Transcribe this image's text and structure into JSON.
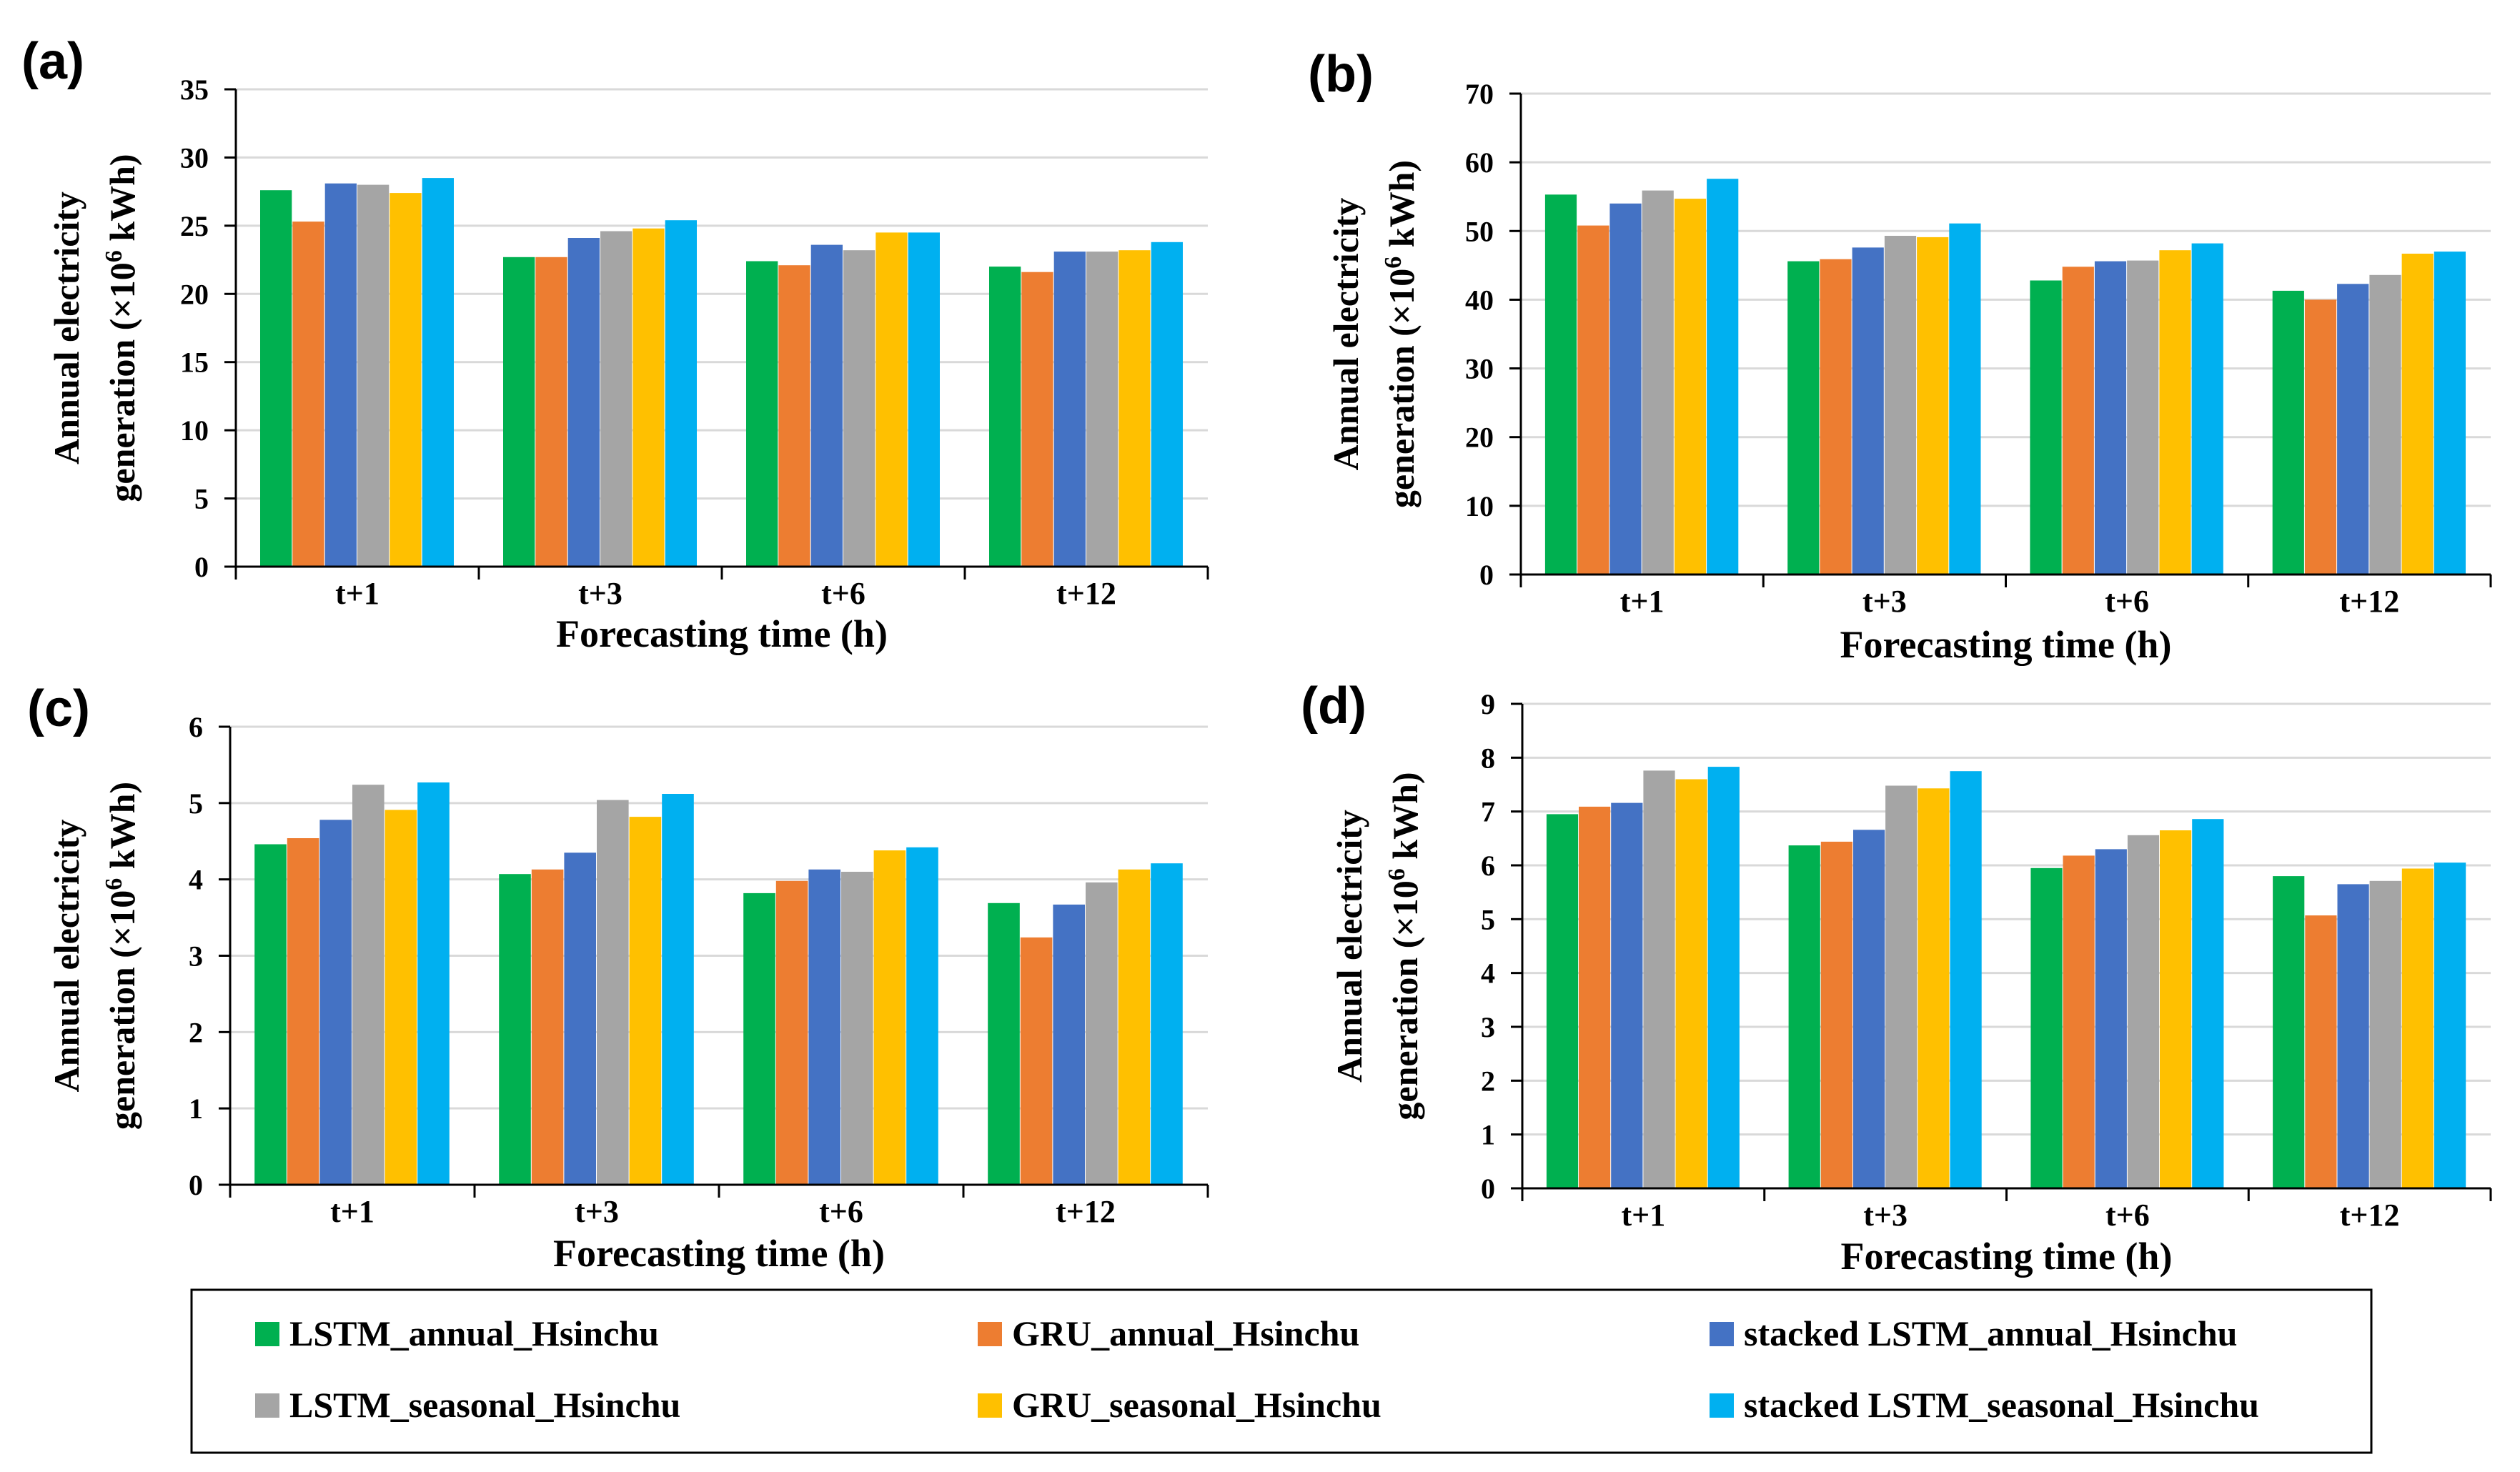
{
  "figure": {
    "legend": [
      {
        "name": "LSTM_annual_Hsinchu",
        "color": "#00b050"
      },
      {
        "name": "GRU_annual_Hsinchu",
        "color": "#ed7d31"
      },
      {
        "name": "stacked LSTM_annual_Hsinchu",
        "color": "#4472c4"
      },
      {
        "name": "LSTM_seasonal_Hsinchu",
        "color": "#a5a5a5"
      },
      {
        "name": "GRU_seasonal_Hsinchu",
        "color": "#ffc000"
      },
      {
        "name": "stacked LSTM_seasonal_Hsinchu",
        "color": "#00b0f0"
      }
    ]
  },
  "chart_data": [
    {
      "panel": "(a)",
      "type": "bar",
      "xlabel": "Forecasting time (h)",
      "ylabel_line1": "Annual electricity",
      "ylabel_line2": "generation (×10",
      "ylabel_sup": "6",
      "ylabel_unit": " kWh)",
      "categories": [
        "t+1",
        "t+3",
        "t+6",
        "t+12"
      ],
      "ylim": [
        0,
        35
      ],
      "yticks": [
        0,
        5,
        10,
        15,
        20,
        25,
        30,
        35
      ],
      "series": [
        {
          "name": "LSTM_annual_Hsinchu",
          "values": [
            27.6,
            22.7,
            22.4,
            22.0
          ]
        },
        {
          "name": "GRU_annual_Hsinchu",
          "values": [
            25.3,
            22.7,
            22.1,
            21.6
          ]
        },
        {
          "name": "stacked LSTM_annual_Hsinchu",
          "values": [
            28.1,
            24.1,
            23.6,
            23.1
          ]
        },
        {
          "name": "LSTM_seasonal_Hsinchu",
          "values": [
            28.0,
            24.6,
            23.2,
            23.1
          ]
        },
        {
          "name": "GRU_seasonal_Hsinchu",
          "values": [
            27.4,
            24.8,
            24.5,
            23.2
          ]
        },
        {
          "name": "stacked LSTM_seasonal_Hsinchu",
          "values": [
            28.5,
            25.4,
            24.5,
            23.8
          ]
        }
      ]
    },
    {
      "panel": "(b)",
      "type": "bar",
      "xlabel": "Forecasting time (h)",
      "ylabel_line1": "Annual electricity",
      "ylabel_line2": "generation (×10",
      "ylabel_sup": "6",
      "ylabel_unit": " kWh)",
      "categories": [
        "t+1",
        "t+3",
        "t+6",
        "t+12"
      ],
      "ylim": [
        0,
        70
      ],
      "yticks": [
        0,
        10,
        20,
        30,
        40,
        50,
        60,
        70
      ],
      "series": [
        {
          "name": "LSTM_annual_Hsinchu",
          "values": [
            55.3,
            45.6,
            42.8,
            41.3
          ]
        },
        {
          "name": "GRU_annual_Hsinchu",
          "values": [
            50.8,
            45.9,
            44.8,
            40.0
          ]
        },
        {
          "name": "stacked LSTM_annual_Hsinchu",
          "values": [
            54.0,
            47.6,
            45.6,
            42.3
          ]
        },
        {
          "name": "LSTM_seasonal_Hsinchu",
          "values": [
            55.9,
            49.3,
            45.7,
            43.6
          ]
        },
        {
          "name": "GRU_seasonal_Hsinchu",
          "values": [
            54.7,
            49.1,
            47.2,
            46.7
          ]
        },
        {
          "name": "stacked LSTM_seasonal_Hsinchu",
          "values": [
            57.6,
            51.1,
            48.2,
            47.0
          ]
        }
      ]
    },
    {
      "panel": "(c)",
      "type": "bar",
      "xlabel": "Forecasting time (h)",
      "ylabel_line1": "Annual electricity",
      "ylabel_line2": "generation (×10",
      "ylabel_sup": "6",
      "ylabel_unit": " kWh)",
      "categories": [
        "t+1",
        "t+3",
        "t+6",
        "t+12"
      ],
      "ylim": [
        0,
        6
      ],
      "yticks": [
        0,
        1,
        2,
        3,
        4,
        5,
        6
      ],
      "series": [
        {
          "name": "LSTM_annual_Hsinchu",
          "values": [
            4.46,
            4.07,
            3.82,
            3.69
          ]
        },
        {
          "name": "GRU_annual_Hsinchu",
          "values": [
            4.54,
            4.13,
            3.98,
            3.24
          ]
        },
        {
          "name": "stacked LSTM_annual_Hsinchu",
          "values": [
            4.78,
            4.35,
            4.13,
            3.67
          ]
        },
        {
          "name": "LSTM_seasonal_Hsinchu",
          "values": [
            5.24,
            5.04,
            4.1,
            3.96
          ]
        },
        {
          "name": "GRU_seasonal_Hsinchu",
          "values": [
            4.91,
            4.82,
            4.38,
            4.13
          ]
        },
        {
          "name": "stacked LSTM_seasonal_Hsinchu",
          "values": [
            5.27,
            5.12,
            4.42,
            4.21
          ]
        }
      ]
    },
    {
      "panel": "(d)",
      "type": "bar",
      "xlabel": "Forecasting time (h)",
      "ylabel_line1": "Annual electricity",
      "ylabel_line2": "generation (×10",
      "ylabel_sup": "6",
      "ylabel_unit": " kWh)",
      "categories": [
        "t+1",
        "t+3",
        "t+6",
        "t+12"
      ],
      "ylim": [
        0,
        9
      ],
      "yticks": [
        0,
        1,
        2,
        3,
        4,
        5,
        6,
        7,
        8,
        9
      ],
      "series": [
        {
          "name": "LSTM_annual_Hsinchu",
          "values": [
            6.95,
            6.37,
            5.95,
            5.8
          ]
        },
        {
          "name": "GRU_annual_Hsinchu",
          "values": [
            7.09,
            6.44,
            6.18,
            5.07
          ]
        },
        {
          "name": "stacked LSTM_annual_Hsinchu",
          "values": [
            7.16,
            6.66,
            6.3,
            5.65
          ]
        },
        {
          "name": "LSTM_seasonal_Hsinchu",
          "values": [
            7.76,
            7.48,
            6.56,
            5.71
          ]
        },
        {
          "name": "GRU_seasonal_Hsinchu",
          "values": [
            7.6,
            7.43,
            6.65,
            5.94
          ]
        },
        {
          "name": "stacked LSTM_seasonal_Hsinchu",
          "values": [
            7.83,
            7.75,
            6.86,
            6.05
          ]
        }
      ]
    }
  ]
}
